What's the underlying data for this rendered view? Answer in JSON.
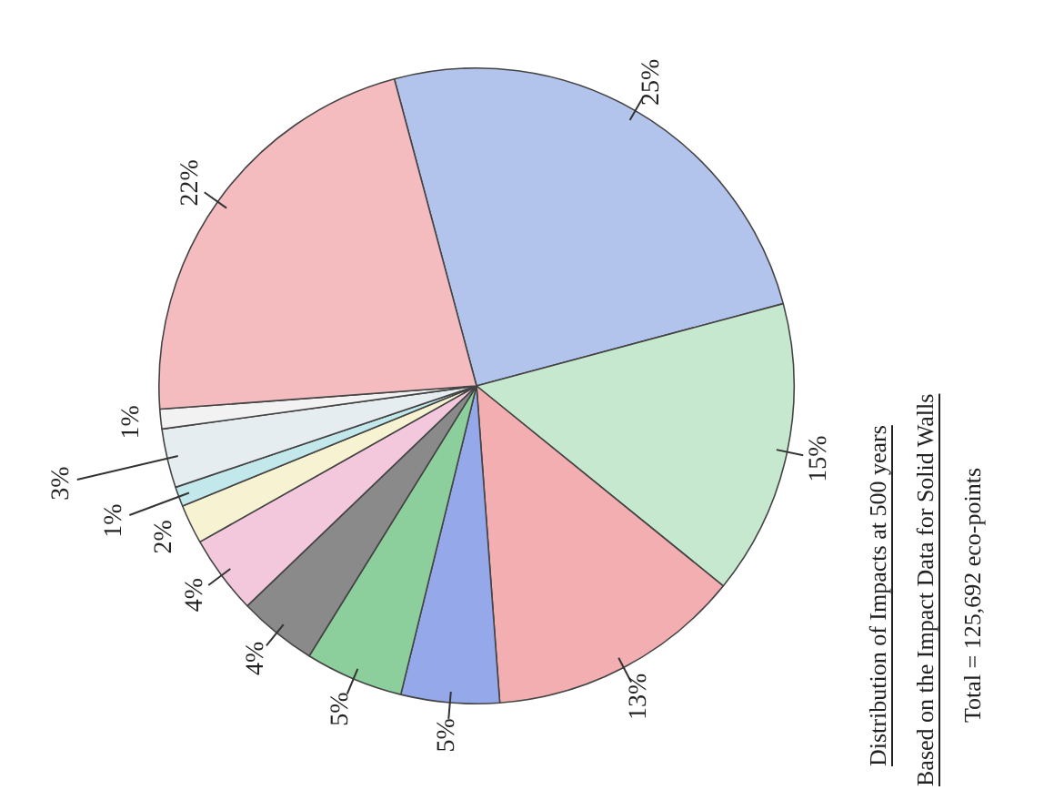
{
  "chart_data": {
    "type": "pie",
    "title": "Distribution of Impacts at 500 years",
    "subtitle": "Based on the Impact Data for Solid Walls",
    "annotations": [
      "Total = 125,692 eco-points"
    ],
    "categories": [
      null,
      null,
      null,
      null,
      null,
      null,
      null,
      null,
      null,
      null,
      null,
      null
    ],
    "values": [
      25,
      15,
      13,
      5,
      5,
      4,
      4,
      2,
      1,
      3,
      1,
      22
    ],
    "value_labels": [
      "25%",
      "15%",
      "13%",
      "5%",
      "5%",
      "4%",
      "4%",
      "2%",
      "1%",
      "3%",
      "1%",
      "22%"
    ],
    "colors": [
      "#b3c4ec",
      "#c6e8ce",
      "#f2aeb0",
      "#94a8ea",
      "#8ccf9c",
      "#8a8a8a",
      "#f3c8dc",
      "#f7f3d2",
      "#c2e8ec",
      "#e6edf0",
      "#f2f2f2",
      "#f5bcc0"
    ],
    "legend": false
  }
}
